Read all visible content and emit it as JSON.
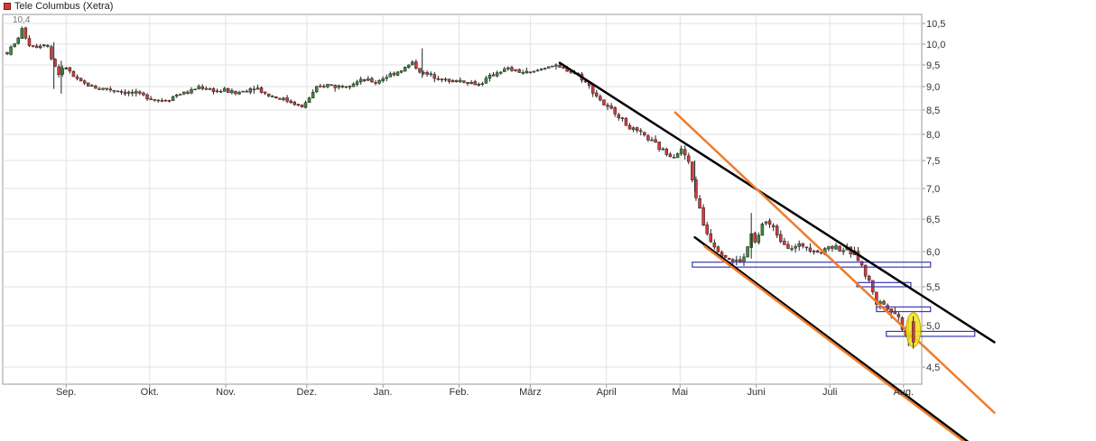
{
  "legend": {
    "label": "Tele Columbus (Xetra)",
    "color": "#d23a3a"
  },
  "chart_data": {
    "type": "candlestick",
    "title": "",
    "xlabel": "",
    "ylabel": "",
    "ylim": [
      4.0,
      10.75
    ],
    "y_ticks": [
      "10,5",
      "10,0",
      "9,5",
      "9,0",
      "8,5",
      "8,0",
      "7,5",
      "7,0",
      "6,5",
      "6,0",
      "5,5",
      "5,0",
      "4,5"
    ],
    "y_tick_values": [
      10.5,
      10.0,
      9.5,
      9.0,
      8.5,
      8.0,
      7.5,
      7.0,
      6.5,
      6.0,
      5.5,
      5.0,
      4.5
    ],
    "x_ticks": [
      "Sep.",
      "Okt.",
      "Nov.",
      "Dez.",
      "Jan.",
      "Feb.",
      "März",
      "April",
      "Mai",
      "Juni",
      "Juli",
      "Aug."
    ],
    "x_tick_days": [
      24,
      58,
      89,
      122,
      153,
      184,
      213,
      244,
      274,
      305,
      335,
      365
    ],
    "max_label": "10,4",
    "grid": true,
    "legend_position": "top-left",
    "up_color": "#3a8a3a",
    "down_color": "#d23a3a",
    "price_path": [
      [
        0,
        9.8
      ],
      [
        3,
        10.0
      ],
      [
        6,
        10.35
      ],
      [
        9,
        10.0
      ],
      [
        12,
        9.95
      ],
      [
        16,
        10.05
      ],
      [
        18,
        9.65
      ],
      [
        21,
        9.3
      ],
      [
        24,
        9.45
      ],
      [
        28,
        9.15
      ],
      [
        32,
        9.05
      ],
      [
        36,
        8.98
      ],
      [
        40,
        8.95
      ],
      [
        44,
        8.93
      ],
      [
        48,
        8.88
      ],
      [
        52,
        8.85
      ],
      [
        55,
        8.8
      ],
      [
        58,
        8.78
      ],
      [
        62,
        8.7
      ],
      [
        66,
        8.75
      ],
      [
        70,
        8.85
      ],
      [
        74,
        8.88
      ],
      [
        78,
        9.0
      ],
      [
        82,
        8.95
      ],
      [
        86,
        8.9
      ],
      [
        89,
        8.92
      ],
      [
        93,
        8.85
      ],
      [
        97,
        8.92
      ],
      [
        101,
        9.0
      ],
      [
        105,
        8.85
      ],
      [
        109,
        8.78
      ],
      [
        113,
        8.72
      ],
      [
        117,
        8.65
      ],
      [
        120,
        8.55
      ],
      [
        122,
        8.7
      ],
      [
        126,
        8.95
      ],
      [
        130,
        9.05
      ],
      [
        134,
        9.0
      ],
      [
        138,
        9.05
      ],
      [
        142,
        9.1
      ],
      [
        146,
        9.15
      ],
      [
        150,
        9.1
      ],
      [
        153,
        9.2
      ],
      [
        157,
        9.3
      ],
      [
        161,
        9.4
      ],
      [
        165,
        9.55
      ],
      [
        169,
        9.3
      ],
      [
        173,
        9.25
      ],
      [
        177,
        9.2
      ],
      [
        180,
        9.1
      ],
      [
        184,
        9.15
      ],
      [
        188,
        9.1
      ],
      [
        192,
        9.05
      ],
      [
        196,
        9.2
      ],
      [
        200,
        9.35
      ],
      [
        204,
        9.4
      ],
      [
        208,
        9.35
      ],
      [
        213,
        9.3
      ],
      [
        217,
        9.4
      ],
      [
        221,
        9.5
      ],
      [
        225,
        9.42
      ],
      [
        229,
        9.38
      ],
      [
        233,
        9.25
      ],
      [
        237,
        9.0
      ],
      [
        241,
        8.75
      ],
      [
        244,
        8.55
      ],
      [
        248,
        8.45
      ],
      [
        252,
        8.2
      ],
      [
        256,
        8.05
      ],
      [
        260,
        7.95
      ],
      [
        264,
        7.8
      ],
      [
        268,
        7.65
      ],
      [
        272,
        7.6
      ],
      [
        274,
        7.72
      ],
      [
        277,
        7.55
      ],
      [
        280,
        6.95
      ],
      [
        284,
        6.35
      ],
      [
        288,
        6.1
      ],
      [
        292,
        5.95
      ],
      [
        296,
        5.85
      ],
      [
        300,
        5.9
      ],
      [
        303,
        6.25
      ],
      [
        305,
        6.1
      ],
      [
        308,
        6.5
      ],
      [
        312,
        6.35
      ],
      [
        316,
        6.15
      ],
      [
        320,
        6.05
      ],
      [
        324,
        6.1
      ],
      [
        328,
        6.05
      ],
      [
        332,
        5.98
      ],
      [
        335,
        6.1
      ],
      [
        339,
        6.05
      ],
      [
        343,
        6.0
      ],
      [
        346,
        5.95
      ],
      [
        349,
        5.7
      ],
      [
        352,
        5.5
      ],
      [
        354,
        5.3
      ],
      [
        357,
        5.28
      ],
      [
        360,
        5.22
      ],
      [
        363,
        5.1
      ],
      [
        365,
        4.95
      ],
      [
        367,
        4.85
      ],
      [
        369,
        4.98
      ]
    ],
    "trend_lines": [
      {
        "color": "#000000",
        "from": [
          225,
          9.55
        ],
        "to": [
          402,
          4.8
        ]
      },
      {
        "color": "#000000",
        "from": [
          280,
          6.22
        ],
        "to": [
          398,
          3.45
        ]
      },
      {
        "color": "#f07b2a",
        "from": [
          272,
          8.45
        ],
        "to": [
          402,
          3.95
        ]
      },
      {
        "color": "#f07b2a",
        "from": [
          284,
          6.08
        ],
        "to": [
          392,
          3.55
        ]
      }
    ],
    "support_zones": [
      {
        "from_day": 279,
        "to_day": 376,
        "low": 5.78,
        "high": 5.85
      },
      {
        "from_day": 346,
        "to_day": 368,
        "low": 5.5,
        "high": 5.56
      },
      {
        "from_day": 354,
        "to_day": 376,
        "low": 5.18,
        "high": 5.24
      },
      {
        "from_day": 358,
        "to_day": 394,
        "low": 4.87,
        "high": 4.93
      }
    ],
    "highlight": {
      "day": 369,
      "value": 4.95,
      "color": "#f2e21a"
    }
  }
}
